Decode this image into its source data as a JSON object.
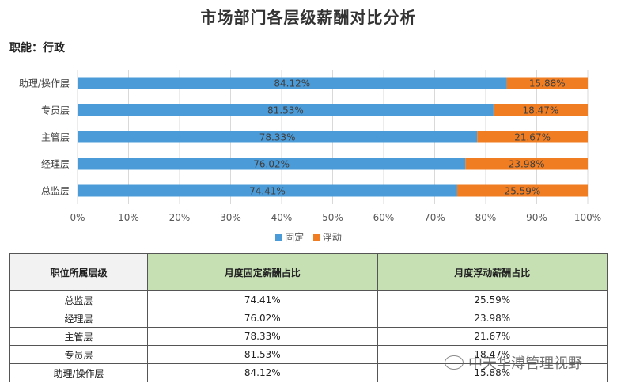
{
  "header": {
    "title": "市场部门各层级薪酬对比分析",
    "subtitle": "职能：行政"
  },
  "chart_data": {
    "type": "bar",
    "orientation": "horizontal",
    "stacked": "percent",
    "categories": [
      "助理/操作层",
      "专员层",
      "主管层",
      "经理层",
      "总监层"
    ],
    "series": [
      {
        "name": "固定",
        "color": "#4b9bd8",
        "values": [
          84.12,
          81.53,
          78.33,
          76.02,
          74.41
        ],
        "labels": [
          "84.12%",
          "81.53%",
          "78.33%",
          "76.02%",
          "74.41%"
        ]
      },
      {
        "name": "浮动",
        "color": "#f07d22",
        "values": [
          15.88,
          18.47,
          21.67,
          23.98,
          25.59
        ],
        "labels": [
          "15.88%",
          "18.47%",
          "21.67%",
          "23.98%",
          "25.59%"
        ]
      }
    ],
    "xlim": [
      0,
      100
    ],
    "xticks": [
      "0%",
      "10%",
      "20%",
      "30%",
      "40%",
      "50%",
      "60%",
      "70%",
      "80%",
      "90%",
      "100%"
    ],
    "grid": true,
    "legend_position": "bottom"
  },
  "table": {
    "headers": [
      "职位所属层级",
      "月度固定薪酬占比",
      "月度浮动薪酬占比"
    ],
    "rows": [
      [
        "总监层",
        "74.41%",
        "25.59%"
      ],
      [
        "经理层",
        "76.02%",
        "23.98%"
      ],
      [
        "主管层",
        "78.33%",
        "21.67%"
      ],
      [
        "专员层",
        "81.53%",
        "18.47%"
      ],
      [
        "助理/操作层",
        "84.12%",
        "15.88%"
      ]
    ]
  },
  "watermark": {
    "text": "中天华溥管理视野",
    "icon": "wechat-icon"
  }
}
